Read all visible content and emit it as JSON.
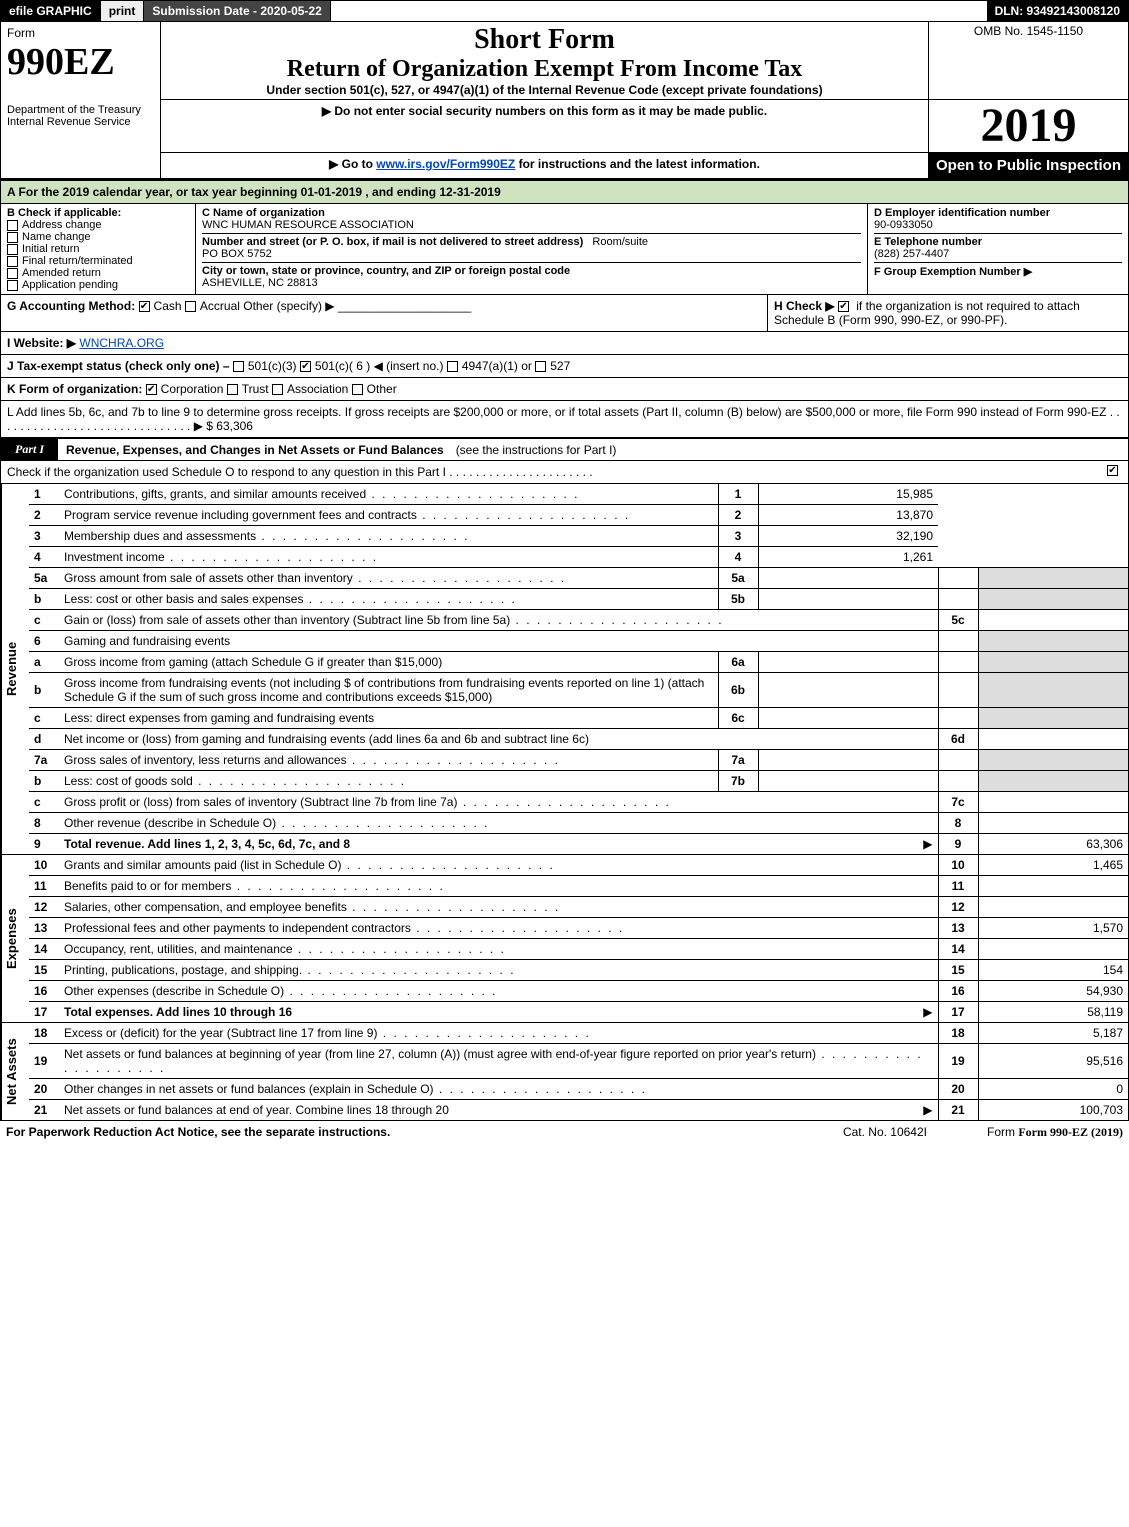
{
  "top": {
    "efile": "efile GRAPHIC",
    "print": "print",
    "subdate": "Submission Date - 2020-05-22",
    "dln": "DLN: 93492143008120"
  },
  "head": {
    "form_label": "Form",
    "form_no": "990EZ",
    "dept": "Department of the Treasury",
    "irs": "Internal Revenue Service",
    "short": "Short Form",
    "return": "Return of Organization Exempt From Income Tax",
    "under": "Under section 501(c), 527, or 4947(a)(1) of the Internal Revenue Code (except private foundations)",
    "note1_pre": "▶ Do not enter social security numbers on this form as it may be made public.",
    "note2_pre": "▶ Go to ",
    "note2_link": "www.irs.gov/Form990EZ",
    "note2_post": " for instructions and the latest information.",
    "omb": "OMB No. 1545-1150",
    "year": "2019",
    "open": "Open to Public Inspection"
  },
  "A": {
    "text": "A For the 2019 calendar year, or tax year beginning 01-01-2019 , and ending 12-31-2019"
  },
  "B": {
    "label": "B Check if applicable:",
    "items": [
      "Address change",
      "Name change",
      "Initial return",
      "Final return/terminated",
      "Amended return",
      "Application pending"
    ]
  },
  "C": {
    "name_lbl": "C Name of organization",
    "name": "WNC HUMAN RESOURCE ASSOCIATION",
    "street_lbl": "Number and street (or P. O. box, if mail is not delivered to street address)",
    "room_lbl": "Room/suite",
    "street": "PO BOX 5752",
    "city_lbl": "City or town, state or province, country, and ZIP or foreign postal code",
    "city": "ASHEVILLE, NC  28813"
  },
  "D": {
    "ein_lbl": "D Employer identification number",
    "ein": "90-0933050",
    "tel_lbl": "E Telephone number",
    "tel": "(828) 257-4407",
    "grp_lbl": "F Group Exemption Number  ▶"
  },
  "G": {
    "label": "G Accounting Method:",
    "cash": "Cash",
    "accrual": "Accrual",
    "other": "Other (specify) ▶"
  },
  "H": {
    "label_pre": "H Check ▶ ",
    "label_post": " if the organization is not required to attach Schedule B (Form 990, 990-EZ, or 990-PF).",
    "box": "☑"
  },
  "I": {
    "label": "I Website: ▶",
    "value": "WNCHRA.ORG"
  },
  "J": {
    "label": "J Tax-exempt status (check only one) – ",
    "a": "501(c)(3)",
    "b_pre": "501(c)( 6 ) ◀ (insert no.)",
    "c": "4947(a)(1) or",
    "d": "527"
  },
  "K": {
    "label": "K Form of organization:",
    "corp": "Corporation",
    "trust": "Trust",
    "assoc": "Association",
    "other": "Other"
  },
  "L": {
    "text": "L Add lines 5b, 6c, and 7b to line 9 to determine gross receipts. If gross receipts are $200,000 or more, or if total assets (Part II, column (B) below) are $500,000 or more, file Form 990 instead of Form 990-EZ  .  .  .  .  .  .  .  .  .  .  .  .  .  .  .  .  .  .  .  .  .  .  .  .  .  .  .  .  .  .  ▶ $ 63,306"
  },
  "part1": {
    "tag": "Part I",
    "title": "Revenue, Expenses, and Changes in Net Assets or Fund Balances",
    "sub": "(see the instructions for Part I)",
    "check": "Check if the organization used Schedule O to respond to any question in this Part I  .  .  .  .  .  .  .  .  .  .  .  .  .  .  .  .  .  .  .  .  .  ."
  },
  "sections": {
    "revenue": "Revenue",
    "expenses": "Expenses",
    "netassets": "Net Assets"
  },
  "lines": {
    "l1": {
      "no": "1",
      "desc": "Contributions, gifts, grants, and similar amounts received",
      "r": "1",
      "amt": "15,985"
    },
    "l2": {
      "no": "2",
      "desc": "Program service revenue including government fees and contracts",
      "r": "2",
      "amt": "13,870"
    },
    "l3": {
      "no": "3",
      "desc": "Membership dues and assessments",
      "r": "3",
      "amt": "32,190"
    },
    "l4": {
      "no": "4",
      "desc": "Investment income",
      "r": "4",
      "amt": "1,261"
    },
    "l5a": {
      "no": "5a",
      "desc": "Gross amount from sale of assets other than inventory",
      "sub": "5a"
    },
    "l5b": {
      "no": "b",
      "desc": "Less: cost or other basis and sales expenses",
      "sub": "5b"
    },
    "l5c": {
      "no": "c",
      "desc": "Gain or (loss) from sale of assets other than inventory (Subtract line 5b from line 5a)",
      "r": "5c"
    },
    "l6": {
      "no": "6",
      "desc": "Gaming and fundraising events"
    },
    "l6a": {
      "no": "a",
      "desc": "Gross income from gaming (attach Schedule G if greater than $15,000)",
      "sub": "6a"
    },
    "l6b": {
      "no": "b",
      "desc": "Gross income from fundraising events (not including $                 of contributions from fundraising events reported on line 1) (attach Schedule G if the sum of such gross income and contributions exceeds $15,000)",
      "sub": "6b"
    },
    "l6c": {
      "no": "c",
      "desc": "Less: direct expenses from gaming and fundraising events",
      "sub": "6c"
    },
    "l6d": {
      "no": "d",
      "desc": "Net income or (loss) from gaming and fundraising events (add lines 6a and 6b and subtract line 6c)",
      "r": "6d"
    },
    "l7a": {
      "no": "7a",
      "desc": "Gross sales of inventory, less returns and allowances",
      "sub": "7a"
    },
    "l7b": {
      "no": "b",
      "desc": "Less: cost of goods sold",
      "sub": "7b"
    },
    "l7c": {
      "no": "c",
      "desc": "Gross profit or (loss) from sales of inventory (Subtract line 7b from line 7a)",
      "r": "7c"
    },
    "l8": {
      "no": "8",
      "desc": "Other revenue (describe in Schedule O)",
      "r": "8"
    },
    "l9": {
      "no": "9",
      "desc": "Total revenue. Add lines 1, 2, 3, 4, 5c, 6d, 7c, and 8",
      "r": "9",
      "amt": "63,306",
      "arrow": "▶"
    },
    "l10": {
      "no": "10",
      "desc": "Grants and similar amounts paid (list in Schedule O)",
      "r": "10",
      "amt": "1,465"
    },
    "l11": {
      "no": "11",
      "desc": "Benefits paid to or for members",
      "r": "11"
    },
    "l12": {
      "no": "12",
      "desc": "Salaries, other compensation, and employee benefits",
      "r": "12"
    },
    "l13": {
      "no": "13",
      "desc": "Professional fees and other payments to independent contractors",
      "r": "13",
      "amt": "1,570"
    },
    "l14": {
      "no": "14",
      "desc": "Occupancy, rent, utilities, and maintenance",
      "r": "14"
    },
    "l15": {
      "no": "15",
      "desc": "Printing, publications, postage, and shipping.",
      "r": "15",
      "amt": "154"
    },
    "l16": {
      "no": "16",
      "desc": "Other expenses (describe in Schedule O)",
      "r": "16",
      "amt": "54,930"
    },
    "l17": {
      "no": "17",
      "desc": "Total expenses. Add lines 10 through 16",
      "r": "17",
      "amt": "58,119",
      "arrow": "▶"
    },
    "l18": {
      "no": "18",
      "desc": "Excess or (deficit) for the year (Subtract line 17 from line 9)",
      "r": "18",
      "amt": "5,187"
    },
    "l19": {
      "no": "19",
      "desc": "Net assets or fund balances at beginning of year (from line 27, column (A)) (must agree with end-of-year figure reported on prior year's return)",
      "r": "19",
      "amt": "95,516"
    },
    "l20": {
      "no": "20",
      "desc": "Other changes in net assets or fund balances (explain in Schedule O)",
      "r": "20",
      "amt": "0"
    },
    "l21": {
      "no": "21",
      "desc": "Net assets or fund balances at end of year. Combine lines 18 through 20",
      "r": "21",
      "amt": "100,703",
      "arrow": "▶"
    }
  },
  "footer": {
    "fpr": "For Paperwork Reduction Act Notice, see the separate instructions.",
    "cat": "Cat. No. 10642I",
    "form": "Form 990-EZ (2019)"
  },
  "colors": {
    "green_bg": "#cfe3c1",
    "shade": "#dddddd",
    "link": "#0045c4"
  }
}
